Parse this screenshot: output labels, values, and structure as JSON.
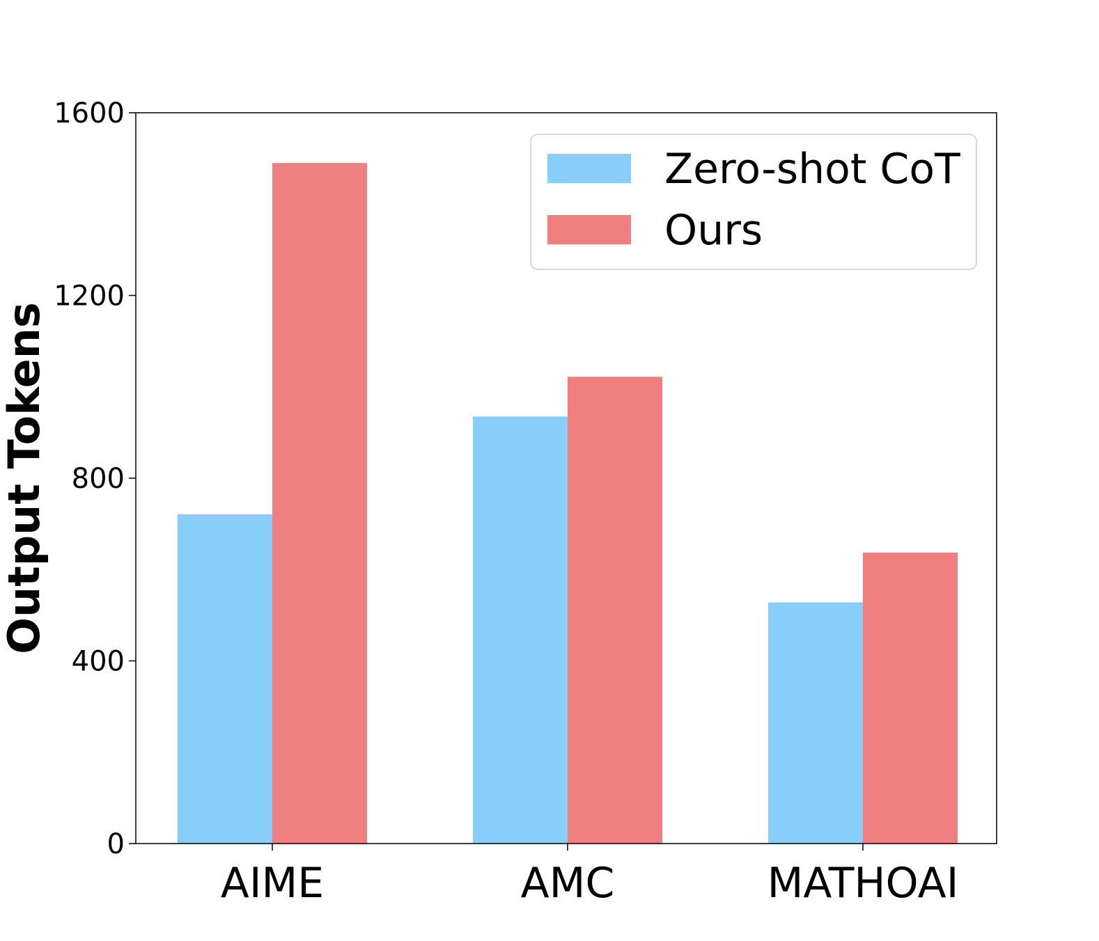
{
  "chart_data": {
    "type": "bar",
    "title": "",
    "xlabel": "",
    "ylabel": "Output Tokens",
    "categories": [
      "AIME",
      "AMC",
      "MATHOAI"
    ],
    "series": [
      {
        "name": "Zero-shot CoT",
        "color": "#87CEFA",
        "values": [
          721,
          935,
          528
        ]
      },
      {
        "name": "Ours",
        "color": "#F08080",
        "values": [
          1490,
          1022,
          637
        ]
      }
    ],
    "ylim": [
      0,
      1600
    ],
    "yticks": [
      0,
      400,
      800,
      1200,
      1600
    ],
    "grid": false,
    "legend_position": "top-right"
  }
}
